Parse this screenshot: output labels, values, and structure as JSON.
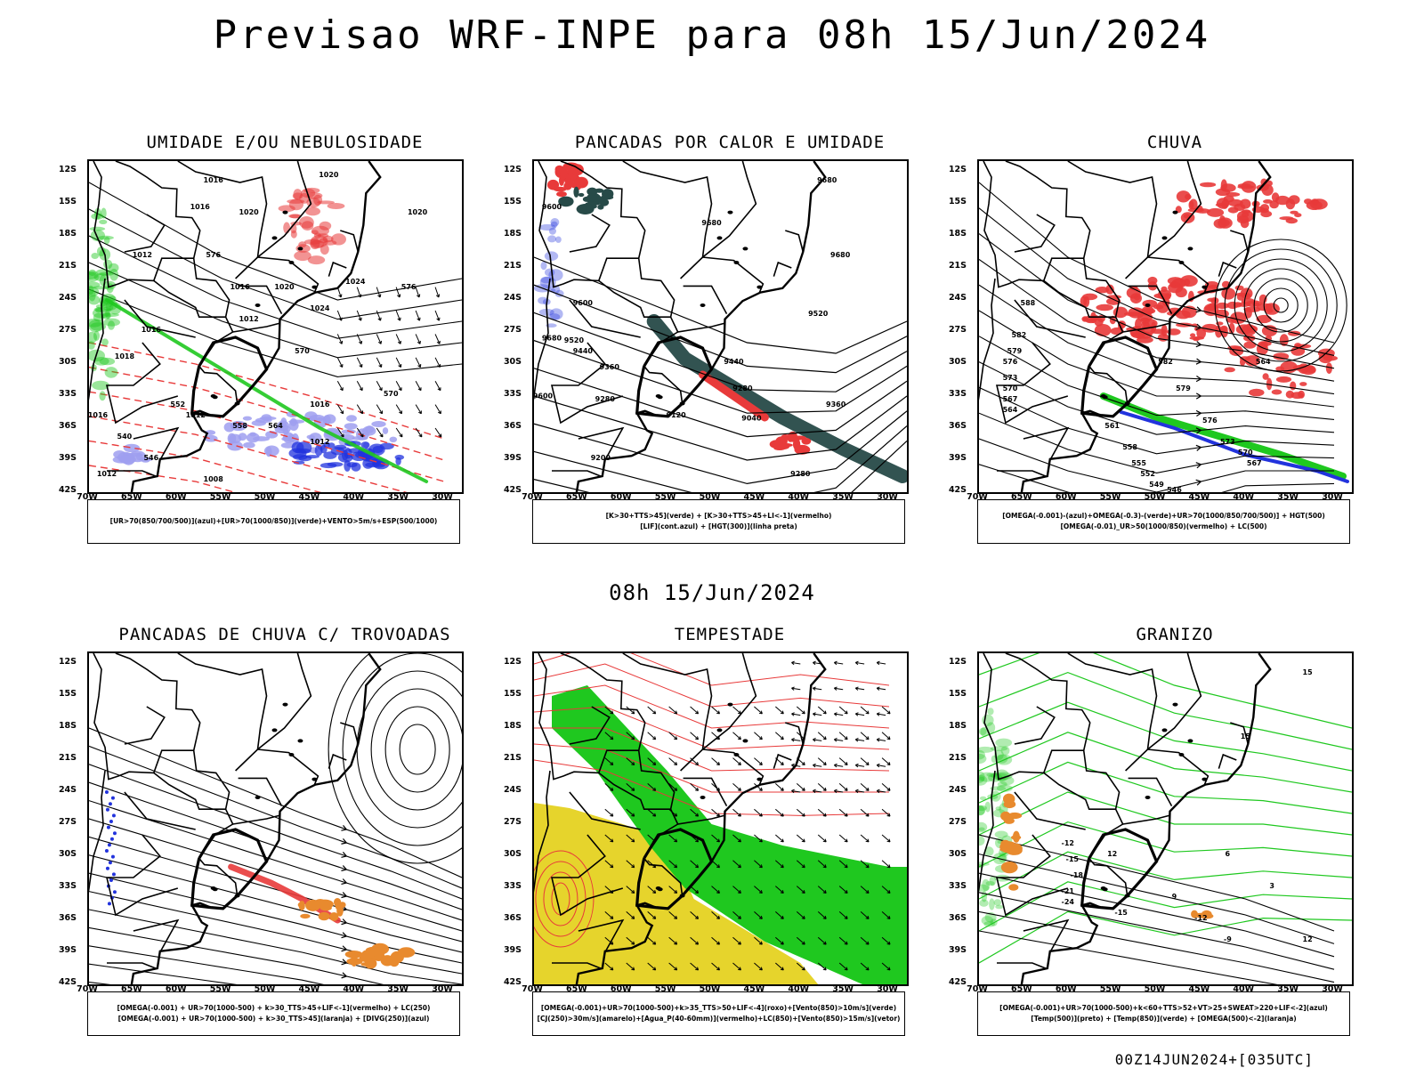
{
  "title": "Previsao WRF-INPE  para 08h 15/Jun/2024",
  "mid_date": "08h 15/Jun/2024",
  "footer": "00Z14JUN2024+[035UTC]",
  "axes": {
    "lat_labels": [
      "12S",
      "15S",
      "18S",
      "21S",
      "24S",
      "27S",
      "30S",
      "33S",
      "36S",
      "39S",
      "42S"
    ],
    "lon_labels": [
      "70W",
      "65W",
      "60W",
      "55W",
      "50W",
      "45W",
      "40W",
      "35W",
      "30W"
    ],
    "lat_range": [
      -42,
      -11
    ],
    "lon_range": [
      -70,
      -28
    ]
  },
  "colors": {
    "red": "#e83a3a",
    "green": "#1fc81f",
    "blue": "#2233dd",
    "lavender": "#9f9ff0",
    "dark_teal": "#274a48",
    "yellow": "#e6d42c",
    "orange": "#e88a2e",
    "black": "#000000"
  },
  "chart_data": [
    {
      "type": "map",
      "title": "UMIDADE E/OU NEBULOSIDADE",
      "legend": [
        "[UR>70(850/700/500)](azul)+[UR>70(1000/850)](verde)+VENTO>5m/s+ESP(500/1000)"
      ],
      "contour_labels": [
        "1016",
        "1016",
        "1020",
        "1020",
        "1020",
        "1012",
        "1016",
        "1012",
        "1020",
        "1024",
        "1024",
        "1016",
        "1018",
        "1012",
        "1016",
        "1012",
        "1008",
        "1012",
        "1016",
        "576",
        "576",
        "570",
        "570",
        "564",
        "558",
        "552",
        "546",
        "540"
      ]
    },
    {
      "type": "map",
      "title": "PANCADAS POR CALOR E UMIDADE",
      "legend": [
        "[K>30+TTS>45](verde)  +  [K>30+TTS>45+LI<-1](vermelho)",
        "[LIF](cont.azul)  +  [HGT(300)](linha preta)"
      ],
      "contour_labels": [
        "9680",
        "9600",
        "9680",
        "9680",
        "9600",
        "9520",
        "9440",
        "9360",
        "9280",
        "9200",
        "9120",
        "9040",
        "9280",
        "9440",
        "9520",
        "9600",
        "9680",
        "9280",
        "9360"
      ]
    },
    {
      "type": "map",
      "title": "CHUVA",
      "legend": [
        "[OMEGA(-0.001)-(azul)+OMEGA(-0.3)-(verde)+UR>70(1000/850/700/500)]  +  HGT(500)",
        "[OMEGA(-0.01)_UR>50(1000/850)(vermelho)  +  LC(500)"
      ],
      "contour_labels": [
        "588",
        "582",
        "579",
        "576",
        "573",
        "570",
        "567",
        "564",
        "561",
        "558",
        "555",
        "552",
        "549",
        "546",
        "582",
        "579",
        "576",
        "573",
        "570",
        "567",
        "564"
      ]
    },
    {
      "type": "map",
      "title": "PANCADAS DE CHUVA C/ TROVOADAS",
      "legend": [
        "[OMEGA(-0.001)  +  UR>70(1000-500)  +  k>30_TTS>45+LIF<-1](vermelho)  +  LC(250)",
        "[OMEGA(-0.001)  +  UR>70(1000-500)  +  k>30_TTS>45](laranja)  +  [DIVG(250)](azul)"
      ]
    },
    {
      "type": "map",
      "title": "TEMPESTADE",
      "legend": [
        "[OMEGA(-0.001)+UR>70(1000-500)+k>35_TTS>50+LIF<-4](roxo)+[Vento(850)>10m/s](verde)",
        "[CJ(250)>30m/s](amarelo)+[Agua_P(40-60mm)](vermelho)+LC(850)+[Vento(850)>15m/s](vetor)"
      ]
    },
    {
      "type": "map",
      "title": "GRANIZO",
      "legend": [
        "[OMEGA(-0.001)+UR>70(1000-500)+k<60+TTS>52+VT>25+SWEAT>220+LIF<-2](azul)",
        "[Temp(500)](preto)  +  [Temp(850)](verde)  +  [OMEGA(500)<-2](laranja)"
      ],
      "contour_labels": [
        "-12",
        "-15",
        "-18",
        "-21",
        "-24",
        "-15",
        "-12",
        "-9",
        "15",
        "12",
        "9",
        "6",
        "3",
        "15",
        "12"
      ]
    }
  ]
}
